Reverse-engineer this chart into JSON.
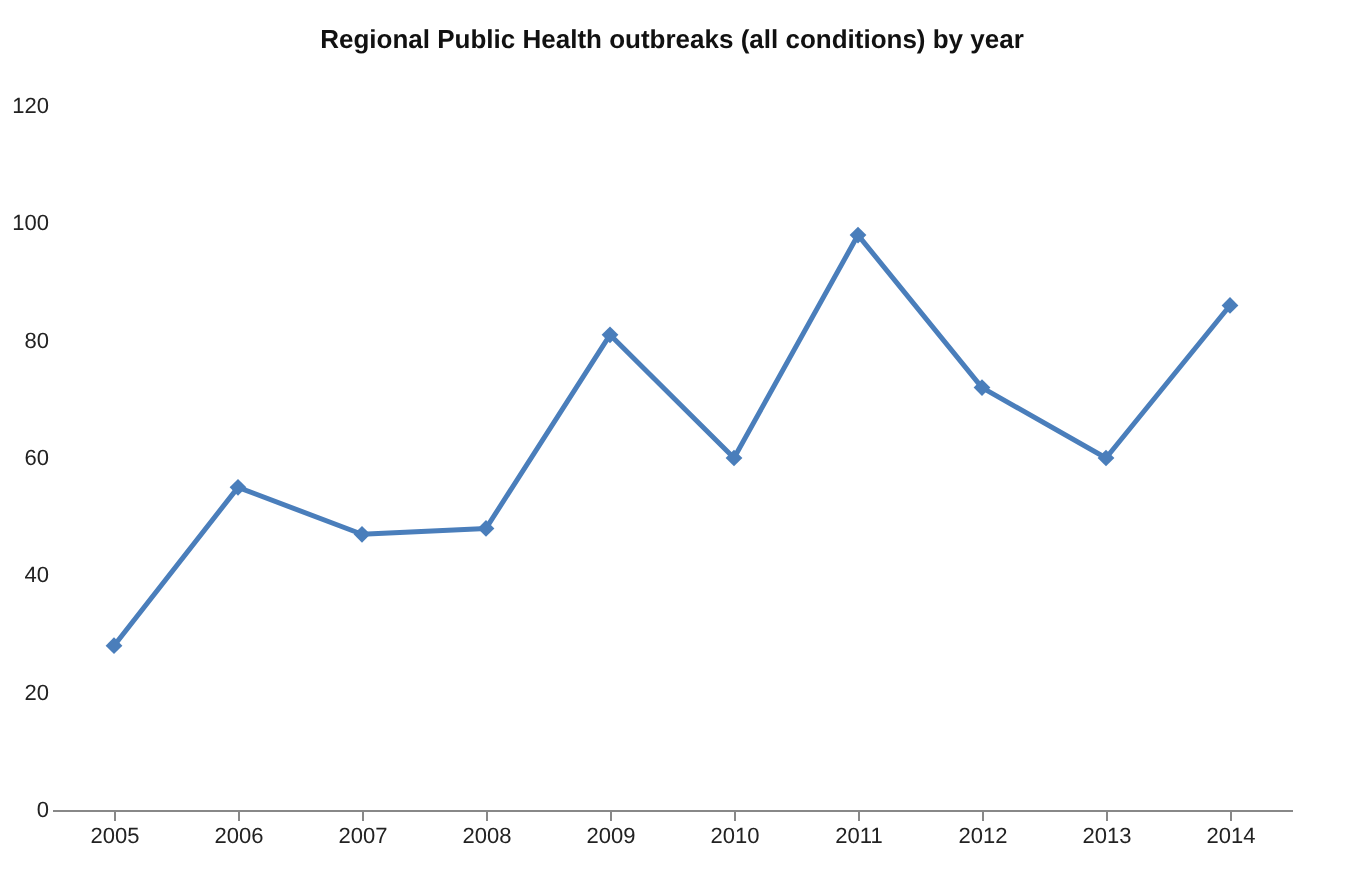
{
  "chart_data": {
    "type": "line",
    "title": "Regional Public Health outbreaks (all conditions) by year",
    "categories": [
      "2005",
      "2006",
      "2007",
      "2008",
      "2009",
      "2010",
      "2011",
      "2012",
      "2013",
      "2014"
    ],
    "series": [
      {
        "color": "#4a7ebb",
        "values": [
          28,
          55,
          47,
          48,
          81,
          60,
          98,
          72,
          60,
          86
        ]
      }
    ],
    "ylim": [
      0,
      120
    ],
    "yticks": [
      0,
      20,
      40,
      60,
      80,
      100,
      120
    ],
    "grid": false,
    "marker": "diamond",
    "line_style": "solid"
  }
}
